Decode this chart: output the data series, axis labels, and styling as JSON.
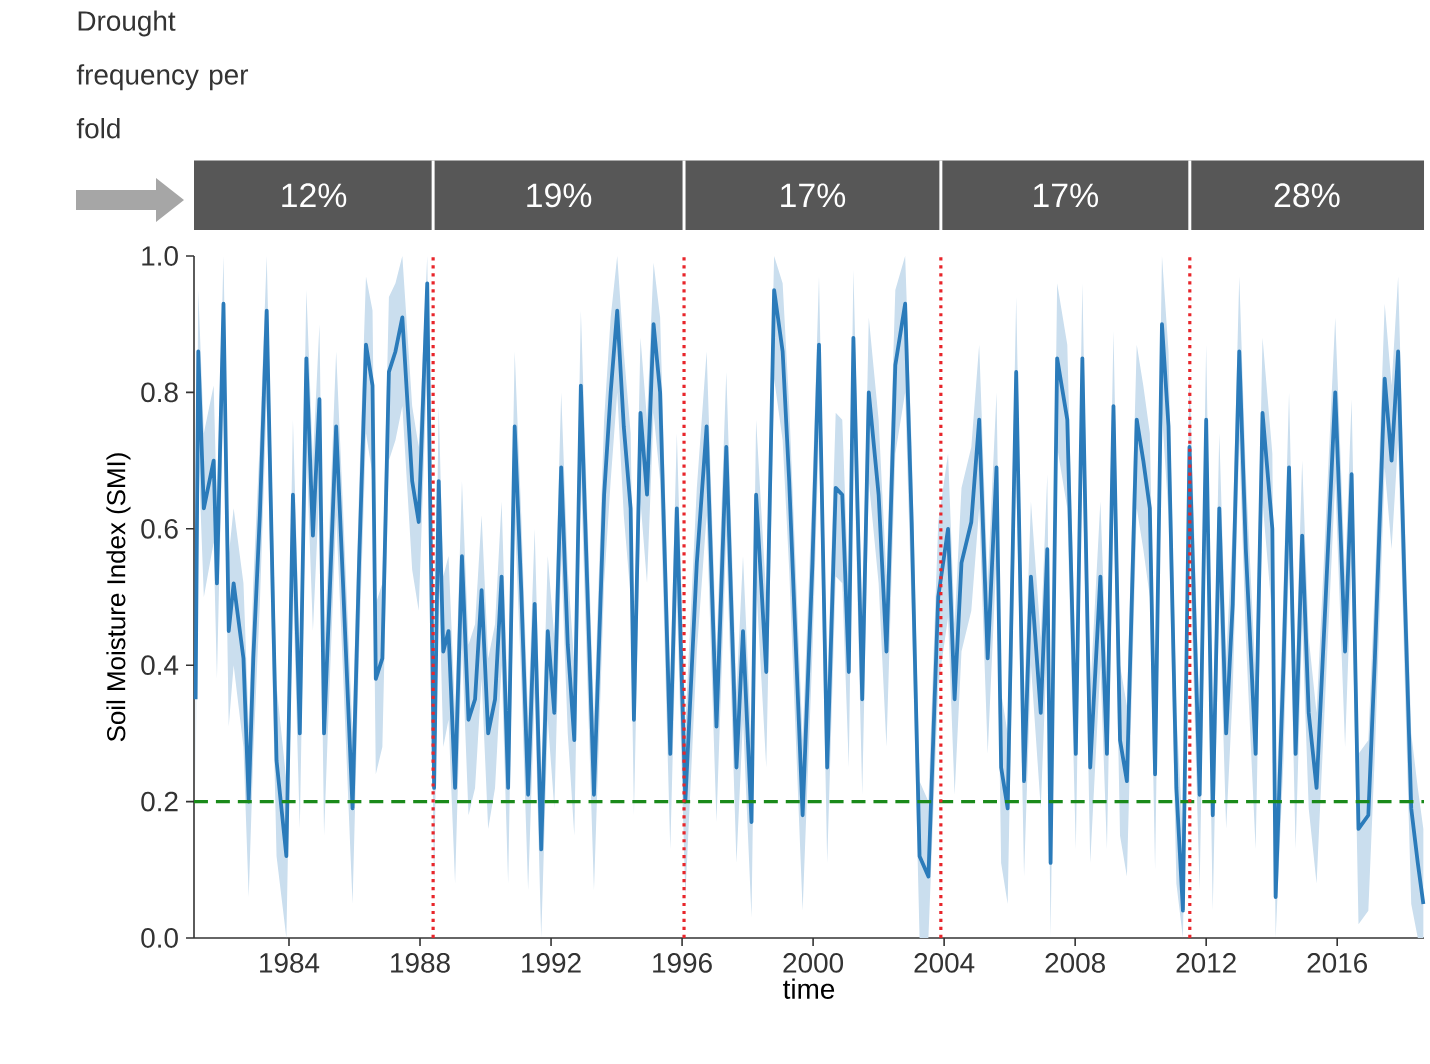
{
  "chart_data": {
    "type": "line",
    "xlabel": "time",
    "ylabel": "Soil Moisture Index (SMI)",
    "xlim": [
      1981.1,
      2018.65
    ],
    "ylim": [
      0,
      1
    ],
    "xticks": [
      1984,
      1988,
      1992,
      1996,
      2000,
      2004,
      2008,
      2012,
      2016
    ],
    "yticks": [
      {
        "value": 0,
        "label": "0.0"
      },
      {
        "value": 0.2,
        "label": "0.2"
      },
      {
        "value": 0.4,
        "label": "0.4"
      },
      {
        "value": 0.6,
        "label": "0.6"
      },
      {
        "value": 0.8,
        "label": "0.8"
      },
      {
        "value": 1,
        "label": "1.0"
      }
    ],
    "x": [
      1981.15,
      1981.23,
      1981.4,
      1981.7,
      1981.8,
      1982.0,
      1982.16,
      1982.31,
      1982.61,
      1982.77,
      1982.91,
      1983.11,
      1983.32,
      1983.52,
      1983.62,
      1983.92,
      1984.12,
      1984.33,
      1984.53,
      1984.73,
      1984.93,
      1985.07,
      1985.23,
      1985.44,
      1985.64,
      1985.94,
      1986.14,
      1986.35,
      1986.55,
      1986.65,
      1986.85,
      1987.05,
      1987.25,
      1987.46,
      1987.76,
      1987.96,
      1988.22,
      1988.43,
      1988.57,
      1988.71,
      1988.87,
      1989.07,
      1989.28,
      1989.48,
      1989.68,
      1989.88,
      1990.08,
      1990.29,
      1990.49,
      1990.69,
      1990.89,
      1991.09,
      1991.3,
      1991.5,
      1991.7,
      1991.9,
      1992.1,
      1992.31,
      1992.51,
      1992.71,
      1992.91,
      1993.31,
      1993.62,
      1993.82,
      1994.02,
      1994.22,
      1994.43,
      1994.53,
      1994.73,
      1994.93,
      1995.13,
      1995.33,
      1995.64,
      1995.84,
      1996.1,
      1996.45,
      1996.75,
      1997.05,
      1997.35,
      1997.66,
      1997.86,
      1998.12,
      1998.26,
      1998.57,
      1998.81,
      1999.07,
      1999.27,
      1999.68,
      1999.98,
      2000.18,
      2000.43,
      2000.69,
      2000.89,
      2001.09,
      2001.23,
      2001.5,
      2001.7,
      2002.0,
      2002.24,
      2002.51,
      2002.81,
      2003.01,
      2003.25,
      2003.52,
      2003.82,
      2004.12,
      2004.32,
      2004.53,
      2004.83,
      2005.07,
      2005.33,
      2005.6,
      2005.74,
      2005.94,
      2006.2,
      2006.44,
      2006.65,
      2006.95,
      2007.15,
      2007.25,
      2007.45,
      2007.76,
      2008.02,
      2008.22,
      2008.46,
      2008.77,
      2008.97,
      2009.17,
      2009.37,
      2009.58,
      2009.88,
      2010.08,
      2010.28,
      2010.44,
      2010.65,
      2010.85,
      2011.09,
      2011.29,
      2011.49,
      2011.8,
      2012.0,
      2012.2,
      2012.4,
      2012.61,
      2012.81,
      2013.01,
      2013.21,
      2013.51,
      2013.72,
      2014.02,
      2014.12,
      2014.36,
      2014.53,
      2014.73,
      2014.93,
      2015.13,
      2015.37,
      2015.64,
      2015.94,
      2016.24,
      2016.44,
      2016.65,
      2016.95,
      2017.15,
      2017.45,
      2017.66,
      2017.86,
      2018.06,
      2018.26,
      2018.46,
      2018.63
    ],
    "series": [
      {
        "color": "#2b7bba",
        "values": [
          0.35,
          0.86,
          0.63,
          0.7,
          0.52,
          0.93,
          0.45,
          0.52,
          0.41,
          0.2,
          0.41,
          0.62,
          0.92,
          0.47,
          0.26,
          0.12,
          0.65,
          0.3,
          0.85,
          0.59,
          0.79,
          0.3,
          0.49,
          0.75,
          0.53,
          0.19,
          0.55,
          0.87,
          0.81,
          0.38,
          0.41,
          0.83,
          0.86,
          0.91,
          0.67,
          0.61,
          0.96,
          0.22,
          0.67,
          0.42,
          0.45,
          0.22,
          0.56,
          0.32,
          0.35,
          0.51,
          0.3,
          0.35,
          0.53,
          0.22,
          0.75,
          0.51,
          0.21,
          0.49,
          0.13,
          0.45,
          0.33,
          0.69,
          0.43,
          0.29,
          0.81,
          0.21,
          0.65,
          0.8,
          0.92,
          0.75,
          0.63,
          0.32,
          0.77,
          0.65,
          0.9,
          0.8,
          0.27,
          0.63,
          0.2,
          0.55,
          0.75,
          0.31,
          0.72,
          0.25,
          0.45,
          0.17,
          0.65,
          0.39,
          0.95,
          0.86,
          0.67,
          0.18,
          0.55,
          0.87,
          0.25,
          0.66,
          0.65,
          0.39,
          0.88,
          0.35,
          0.8,
          0.65,
          0.42,
          0.84,
          0.93,
          0.61,
          0.12,
          0.09,
          0.5,
          0.6,
          0.35,
          0.55,
          0.61,
          0.76,
          0.41,
          0.69,
          0.25,
          0.19,
          0.83,
          0.23,
          0.53,
          0.33,
          0.57,
          0.11,
          0.85,
          0.76,
          0.27,
          0.85,
          0.25,
          0.53,
          0.27,
          0.78,
          0.29,
          0.23,
          0.76,
          0.7,
          0.63,
          0.24,
          0.9,
          0.75,
          0.22,
          0.04,
          0.72,
          0.21,
          0.76,
          0.18,
          0.63,
          0.3,
          0.49,
          0.86,
          0.57,
          0.27,
          0.77,
          0.6,
          0.06,
          0.4,
          0.69,
          0.27,
          0.59,
          0.33,
          0.22,
          0.49,
          0.8,
          0.42,
          0.68,
          0.16,
          0.18,
          0.41,
          0.82,
          0.7,
          0.86,
          0.51,
          0.19,
          0.11,
          0.05
        ],
        "lower": [
          0.22,
          0.72,
          0.5,
          0.58,
          0.38,
          0.8,
          0.31,
          0.4,
          0.28,
          0.06,
          0.27,
          0.49,
          0.79,
          0.33,
          0.12,
          0.0,
          0.52,
          0.16,
          0.72,
          0.45,
          0.66,
          0.15,
          0.36,
          0.62,
          0.4,
          0.05,
          0.42,
          0.74,
          0.68,
          0.24,
          0.28,
          0.7,
          0.73,
          0.78,
          0.54,
          0.48,
          0.84,
          0.07,
          0.54,
          0.28,
          0.32,
          0.08,
          0.43,
          0.18,
          0.22,
          0.38,
          0.16,
          0.22,
          0.4,
          0.08,
          0.62,
          0.38,
          0.07,
          0.36,
          0.0,
          0.32,
          0.19,
          0.56,
          0.3,
          0.15,
          0.68,
          0.07,
          0.52,
          0.67,
          0.8,
          0.62,
          0.5,
          0.18,
          0.64,
          0.52,
          0.77,
          0.67,
          0.13,
          0.5,
          0.06,
          0.42,
          0.62,
          0.17,
          0.59,
          0.11,
          0.32,
          0.03,
          0.52,
          0.25,
          0.82,
          0.73,
          0.54,
          0.04,
          0.42,
          0.74,
          0.11,
          0.53,
          0.52,
          0.25,
          0.75,
          0.21,
          0.67,
          0.52,
          0.28,
          0.71,
          0.8,
          0.48,
          0.0,
          0.0,
          0.37,
          0.47,
          0.21,
          0.42,
          0.48,
          0.63,
          0.27,
          0.56,
          0.11,
          0.05,
          0.7,
          0.09,
          0.4,
          0.19,
          0.44,
          0.0,
          0.72,
          0.63,
          0.13,
          0.72,
          0.11,
          0.4,
          0.13,
          0.65,
          0.15,
          0.09,
          0.63,
          0.57,
          0.5,
          0.1,
          0.77,
          0.62,
          0.08,
          0.0,
          0.59,
          0.07,
          0.63,
          0.04,
          0.5,
          0.16,
          0.36,
          0.73,
          0.44,
          0.13,
          0.64,
          0.47,
          0.0,
          0.26,
          0.56,
          0.13,
          0.46,
          0.19,
          0.08,
          0.36,
          0.67,
          0.28,
          0.55,
          0.02,
          0.04,
          0.27,
          0.69,
          0.57,
          0.73,
          0.38,
          0.05,
          0.0,
          0.0
        ],
        "upper": [
          0.46,
          0.95,
          0.74,
          0.81,
          0.63,
          1.0,
          0.56,
          0.63,
          0.52,
          0.31,
          0.52,
          0.73,
          1.0,
          0.58,
          0.37,
          0.23,
          0.76,
          0.41,
          0.95,
          0.7,
          0.9,
          0.41,
          0.6,
          0.86,
          0.64,
          0.3,
          0.66,
          0.97,
          0.92,
          0.49,
          0.52,
          0.94,
          0.96,
          1.0,
          0.78,
          0.72,
          1.0,
          0.33,
          0.78,
          0.53,
          0.56,
          0.33,
          0.67,
          0.43,
          0.46,
          0.62,
          0.41,
          0.46,
          0.64,
          0.33,
          0.86,
          0.62,
          0.32,
          0.6,
          0.24,
          0.56,
          0.44,
          0.8,
          0.54,
          0.4,
          0.92,
          0.32,
          0.76,
          0.91,
          1.0,
          0.86,
          0.74,
          0.43,
          0.88,
          0.76,
          0.99,
          0.91,
          0.38,
          0.74,
          0.31,
          0.66,
          0.86,
          0.42,
          0.83,
          0.36,
          0.56,
          0.28,
          0.76,
          0.5,
          1.0,
          0.96,
          0.78,
          0.29,
          0.66,
          0.97,
          0.36,
          0.77,
          0.76,
          0.5,
          0.98,
          0.46,
          0.91,
          0.76,
          0.53,
          0.95,
          1.0,
          0.72,
          0.23,
          0.2,
          0.61,
          0.71,
          0.46,
          0.66,
          0.72,
          0.87,
          0.52,
          0.8,
          0.36,
          0.3,
          0.94,
          0.34,
          0.64,
          0.44,
          0.68,
          0.22,
          0.96,
          0.87,
          0.38,
          0.96,
          0.36,
          0.64,
          0.38,
          0.89,
          0.4,
          0.34,
          0.87,
          0.81,
          0.74,
          0.35,
          1.0,
          0.86,
          0.33,
          0.15,
          0.83,
          0.32,
          0.87,
          0.29,
          0.74,
          0.41,
          0.6,
          0.97,
          0.68,
          0.38,
          0.88,
          0.71,
          0.17,
          0.51,
          0.8,
          0.38,
          0.7,
          0.44,
          0.33,
          0.6,
          0.91,
          0.53,
          0.79,
          0.27,
          0.29,
          0.52,
          0.93,
          0.81,
          0.97,
          0.62,
          0.3,
          0.22,
          0.16
        ]
      }
    ],
    "ref_lines": [
      {
        "axis": "y",
        "value": 0.2,
        "color": "#1a8a1a",
        "line_style": "dashed"
      },
      {
        "axis": "x",
        "value": 1988.4,
        "color": "#e8262b",
        "line_style": "dotted"
      },
      {
        "axis": "x",
        "value": 1996.06,
        "color": "#e8262b",
        "line_style": "dotted"
      },
      {
        "axis": "x",
        "value": 2003.9,
        "color": "#e8262b",
        "line_style": "dotted"
      },
      {
        "axis": "x",
        "value": 2011.5,
        "color": "#e8262b",
        "line_style": "dotted"
      }
    ],
    "annotations": [
      "Drought frequency per fold",
      "12%",
      "19%",
      "17%",
      "17%",
      "28%"
    ]
  }
}
